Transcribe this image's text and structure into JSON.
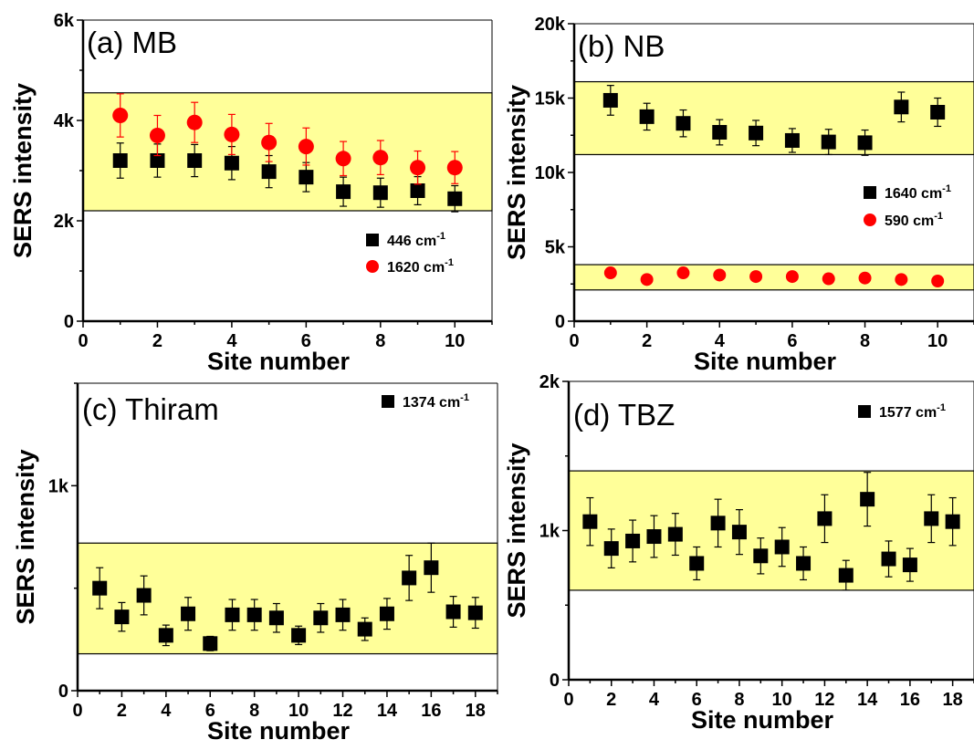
{
  "chart_data": [
    {
      "panel": "a",
      "type": "scatter",
      "title": "(a) MB",
      "xlabel": "Site number",
      "ylabel": "SERS intensity",
      "xlim": [
        0,
        11
      ],
      "ylim": [
        0,
        6000
      ],
      "xticks": [
        0,
        2,
        4,
        6,
        8,
        10
      ],
      "xtick_labels": [
        "0",
        "2",
        "4",
        "6",
        "8",
        "10"
      ],
      "yticks": [
        0,
        2000,
        4000,
        6000
      ],
      "ytick_labels": [
        "0",
        "2k",
        "4k",
        "6k"
      ],
      "band": [
        2200,
        4550
      ],
      "band_color": "#ffff99",
      "legend_position": "lower-right",
      "series": [
        {
          "name": "446 cm-1",
          "marker": "square",
          "color": "#000000",
          "x": [
            1,
            2,
            3,
            4,
            5,
            6,
            7,
            8,
            9,
            10
          ],
          "y": [
            3200,
            3200,
            3200,
            3150,
            2980,
            2870,
            2580,
            2560,
            2600,
            2440
          ],
          "err": [
            350,
            330,
            320,
            330,
            320,
            290,
            290,
            290,
            280,
            260
          ]
        },
        {
          "name": "1620 cm-1",
          "marker": "circle",
          "color": "#ff0000",
          "x": [
            1,
            2,
            3,
            4,
            5,
            6,
            7,
            8,
            9,
            10
          ],
          "y": [
            4100,
            3700,
            3960,
            3720,
            3560,
            3480,
            3240,
            3260,
            3060,
            3060
          ],
          "err": [
            430,
            400,
            400,
            400,
            380,
            370,
            340,
            340,
            330,
            320
          ]
        }
      ]
    },
    {
      "panel": "b",
      "type": "scatter",
      "title": "(b) NB",
      "xlabel": "Site number",
      "ylabel": "SERS intensity",
      "xlim": [
        0,
        11
      ],
      "ylim": [
        0,
        20000
      ],
      "xticks": [
        0,
        2,
        4,
        6,
        8,
        10
      ],
      "xtick_labels": [
        "0",
        "2",
        "4",
        "6",
        "8",
        "10"
      ],
      "yticks": [
        0,
        5000,
        10000,
        15000,
        20000
      ],
      "ytick_labels": [
        "0",
        "5k",
        "10k",
        "15k",
        "20k"
      ],
      "bands": [
        [
          11200,
          16100
        ],
        [
          2100,
          3800
        ]
      ],
      "band_color": "#ffff99",
      "legend_position": "middle-right",
      "series": [
        {
          "name": "1640 cm-1",
          "marker": "square",
          "color": "#000000",
          "x": [
            1,
            2,
            3,
            4,
            5,
            6,
            7,
            8,
            9,
            10
          ],
          "y": [
            14850,
            13750,
            13300,
            12700,
            12650,
            12150,
            12050,
            12000,
            14400,
            14050
          ],
          "err": [
            1000,
            900,
            900,
            850,
            850,
            800,
            850,
            850,
            1000,
            950
          ]
        },
        {
          "name": "590 cm-1",
          "marker": "circle",
          "color": "#ff0000",
          "x": [
            1,
            2,
            3,
            4,
            5,
            6,
            7,
            8,
            9,
            10
          ],
          "y": [
            3250,
            2800,
            3250,
            3100,
            3000,
            3000,
            2850,
            2900,
            2800,
            2700
          ],
          "err": [
            0,
            0,
            0,
            0,
            0,
            0,
            0,
            0,
            0,
            0
          ]
        }
      ]
    },
    {
      "panel": "c",
      "type": "scatter",
      "title": "(c) Thiram",
      "xlabel": "Site number",
      "ylabel": "SERS intensity",
      "xlim": [
        0,
        19
      ],
      "ylim": [
        0,
        1500
      ],
      "xticks": [
        0,
        2,
        4,
        6,
        8,
        10,
        12,
        14,
        16,
        18
      ],
      "xtick_labels": [
        "0",
        "2",
        "4",
        "6",
        "8",
        "10",
        "12",
        "14",
        "16",
        "18"
      ],
      "yticks": [
        0,
        1000
      ],
      "ytick_labels": [
        "0",
        "1k"
      ],
      "band": [
        180,
        720
      ],
      "band_color": "#ffff99",
      "legend_position": "top-right",
      "series": [
        {
          "name": "1374 cm-1",
          "marker": "square",
          "color": "#000000",
          "x": [
            1,
            2,
            3,
            4,
            5,
            6,
            7,
            8,
            9,
            10,
            11,
            12,
            13,
            14,
            15,
            16,
            17,
            18
          ],
          "y": [
            500,
            360,
            465,
            270,
            375,
            230,
            370,
            370,
            355,
            270,
            355,
            370,
            300,
            375,
            550,
            600,
            385,
            380
          ],
          "err": [
            100,
            70,
            95,
            50,
            80,
            35,
            75,
            75,
            70,
            45,
            70,
            75,
            55,
            75,
            110,
            120,
            75,
            75
          ]
        }
      ]
    },
    {
      "panel": "d",
      "type": "scatter",
      "title": "(d) TBZ",
      "xlabel": "Site number",
      "ylabel": "SERS intensity",
      "xlim": [
        0,
        19
      ],
      "ylim": [
        0,
        2000
      ],
      "xticks": [
        0,
        2,
        4,
        6,
        8,
        10,
        12,
        14,
        16,
        18
      ],
      "xtick_labels": [
        "0",
        "2",
        "4",
        "6",
        "8",
        "10",
        "12",
        "14",
        "16",
        "18"
      ],
      "yticks": [
        0,
        1000,
        2000
      ],
      "ytick_labels": [
        "0",
        "1k",
        "2k"
      ],
      "band": [
        600,
        1400
      ],
      "band_color": "#ffff99",
      "legend_position": "top-right",
      "series": [
        {
          "name": "1577 cm-1",
          "marker": "square",
          "color": "#000000",
          "x": [
            1,
            2,
            3,
            4,
            5,
            6,
            7,
            8,
            9,
            10,
            11,
            12,
            13,
            14,
            15,
            16,
            17,
            18
          ],
          "y": [
            1060,
            880,
            930,
            960,
            975,
            780,
            1050,
            990,
            830,
            890,
            780,
            1080,
            700,
            1210,
            810,
            770,
            1080,
            1060
          ],
          "err": [
            160,
            130,
            140,
            140,
            140,
            110,
            160,
            150,
            120,
            130,
            110,
            160,
            100,
            180,
            120,
            110,
            160,
            160
          ]
        }
      ]
    }
  ]
}
